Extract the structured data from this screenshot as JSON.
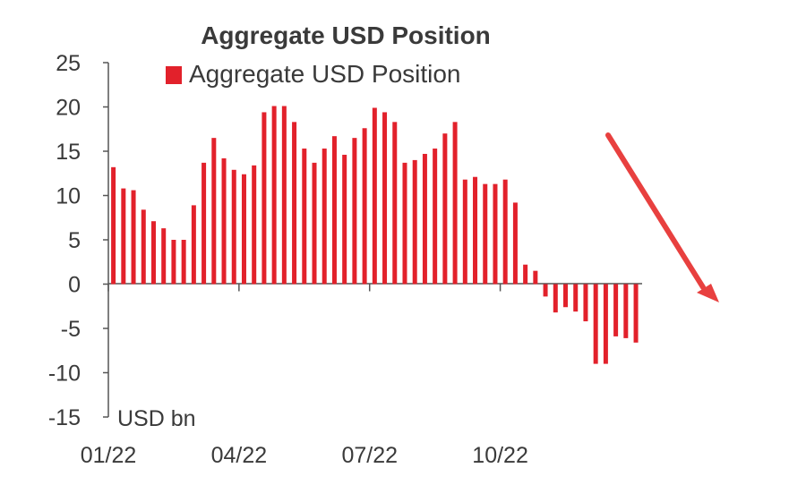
{
  "chart_data": {
    "type": "bar",
    "title": "Aggregate USD Position",
    "unit_label": "USD bn",
    "legend": {
      "entries": [
        "Aggregate USD Position"
      ],
      "position": "top"
    },
    "ylim": [
      -15,
      25
    ],
    "yticks": [
      "25",
      "20",
      "15",
      "10",
      "5",
      "0",
      "-5",
      "-10",
      "-15"
    ],
    "xtick_labels": [
      "01/22",
      "04/22",
      "07/22",
      "10/22"
    ],
    "grid": false,
    "series": [
      {
        "name": "Aggregate USD Position",
        "color": "#e2212b",
        "values": [
          13.2,
          10.8,
          10.6,
          8.4,
          7.1,
          6.3,
          5.0,
          5.0,
          8.9,
          13.7,
          16.5,
          14.2,
          12.9,
          12.4,
          13.4,
          19.4,
          20.1,
          20.1,
          18.3,
          15.3,
          13.7,
          15.3,
          16.7,
          14.6,
          16.5,
          17.6,
          19.9,
          19.4,
          18.3,
          13.7,
          14.0,
          14.7,
          15.3,
          17.0,
          18.3,
          11.8,
          12.1,
          11.3,
          11.3,
          11.8,
          9.2,
          2.2,
          1.5,
          -1.4,
          -3.2,
          -2.6,
          -3.1,
          -4.2,
          -9.0,
          -9.0,
          -5.9,
          -6.1,
          -6.6
        ]
      }
    ],
    "annotation": {
      "type": "arrow",
      "direction": "down-right",
      "color": "#e8403f"
    }
  }
}
